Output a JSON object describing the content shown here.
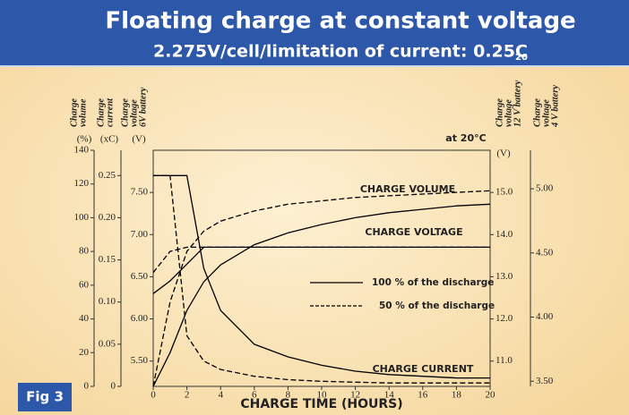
{
  "chart_data": {
    "type": "line",
    "title": "Floating charge at constant voltage",
    "subtitle": "2.275V/cell/limitation of current: 0.25C",
    "subscript": "20",
    "figure_label": "Fig 3",
    "condition": "at 20°C",
    "xlabel": "CHARGE TIME (HOURS)",
    "x": [
      0,
      1,
      2,
      3,
      4,
      6,
      8,
      10,
      12,
      14,
      16,
      18,
      20
    ],
    "xlim": [
      0,
      20
    ],
    "xticks": [
      0,
      2,
      4,
      6,
      8,
      10,
      12,
      14,
      16,
      18,
      20
    ],
    "axes": [
      {
        "label": [
          "Charge",
          "volume"
        ],
        "unit": "(%)",
        "ylim": [
          0,
          140
        ],
        "yticks": [
          0,
          20,
          40,
          60,
          80,
          100,
          120,
          140
        ]
      },
      {
        "label": [
          "Charge",
          "current"
        ],
        "unit": "(xC)",
        "ylim": [
          0,
          0.28
        ],
        "yticks": [
          0,
          {
            "value": 0.05,
            "label": "0.05"
          },
          {
            "value": 0.1,
            "label": "0.10"
          },
          {
            "value": 0.15,
            "label": "0.15"
          },
          {
            "value": 0.2,
            "label": "0.20"
          },
          {
            "value": 0.25,
            "label": "0.25"
          }
        ]
      },
      {
        "label": [
          "Charge",
          "voltage",
          "6V battery"
        ],
        "unit": "(V)",
        "ylim": [
          5.2,
          8.0
        ],
        "yticks": [
          {
            "value": 5.5,
            "label": "5.50"
          },
          {
            "value": 6,
            "label": "6.00"
          },
          {
            "value": 6.5,
            "label": "6.50"
          },
          {
            "value": 7,
            "label": "7.00"
          },
          {
            "value": 7.5,
            "label": "7.50"
          }
        ]
      },
      {
        "label": [
          "Charge",
          "voltage",
          "12 V battery"
        ],
        "unit": "(V)",
        "ylim": [
          10.4,
          16.0
        ],
        "yticks": [
          {
            "value": 11,
            "label": "11.0"
          },
          {
            "value": 12,
            "label": "12.0"
          },
          {
            "value": 13,
            "label": "13.0"
          },
          {
            "value": 14,
            "label": "14.0"
          },
          {
            "value": 15,
            "label": "15.0"
          }
        ]
      },
      {
        "label": [
          "Charge",
          "voltage",
          "4 V battery"
        ],
        "ylim": [
          3.46,
          5.3
        ],
        "yticks": [
          {
            "value": 3.5,
            "label": "3.50"
          },
          {
            "value": 4,
            "label": "4.00"
          },
          {
            "value": 4.5,
            "label": "4.50"
          },
          {
            "value": 5,
            "label": "5.00"
          }
        ]
      }
    ],
    "curve_labels": [
      "CHARGE VOLUME",
      "CHARGE VOLTAGE",
      "CHARGE CURRENT"
    ],
    "legend": [
      {
        "name": "100 % of the discharge",
        "dash": false
      },
      {
        "name": "50 % of the discharge",
        "dash": true
      }
    ],
    "color": "#000000",
    "series": [
      {
        "axis": 0,
        "dash": false,
        "values": [
          0,
          20,
          45,
          62,
          72,
          84,
          91,
          96,
          100,
          103,
          105,
          107,
          108
        ]
      },
      {
        "axis": 0,
        "dash": true,
        "values": [
          0,
          50,
          80,
          92,
          98,
          104,
          108,
          110,
          112,
          113,
          114,
          115,
          116
        ]
      },
      {
        "axis": 3,
        "dash": false,
        "values": [
          12.6,
          12.9,
          13.3,
          13.7,
          13.7,
          13.7,
          13.7,
          13.7,
          13.7,
          13.7,
          13.7,
          13.7,
          13.7
        ]
      },
      {
        "axis": 3,
        "dash": true,
        "values": [
          13.1,
          13.6,
          13.7,
          13.7,
          13.7,
          13.7,
          13.7,
          13.7,
          13.7,
          13.7,
          13.7,
          13.7,
          13.7
        ]
      },
      {
        "axis": 1,
        "dash": false,
        "values": [
          0.25,
          0.25,
          0.25,
          0.14,
          0.09,
          0.05,
          0.035,
          0.025,
          0.018,
          0.014,
          0.012,
          0.01,
          0.01
        ]
      },
      {
        "axis": 1,
        "dash": true,
        "values": [
          0.25,
          0.25,
          0.06,
          0.03,
          0.02,
          0.012,
          0.008,
          0.006,
          0.005,
          0.004,
          0.004,
          0.004,
          0.004
        ]
      }
    ]
  }
}
